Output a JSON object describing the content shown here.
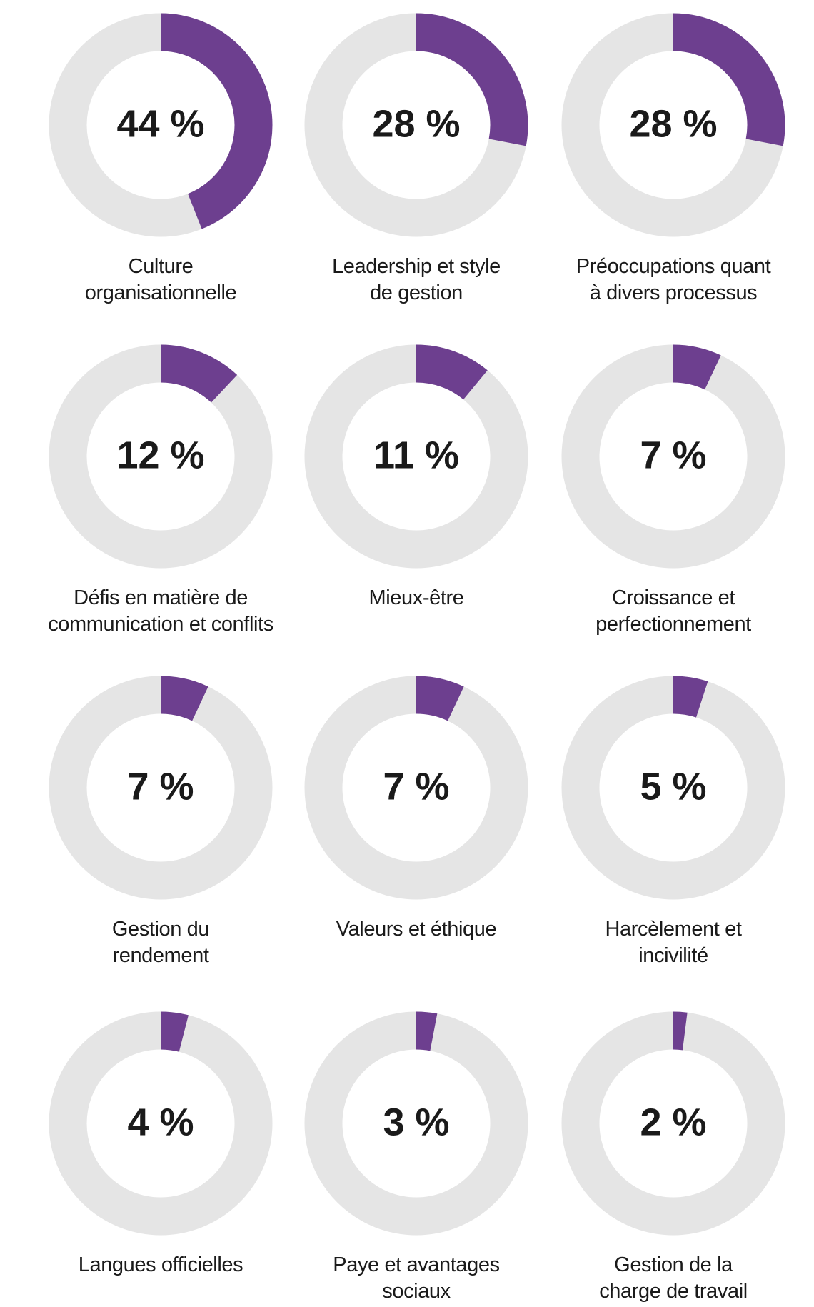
{
  "chart_data": [
    {
      "type": "donut",
      "title_lines": [
        "Culture",
        "organisationnelle"
      ],
      "values": [
        44
      ],
      "value_labels": [
        "44 %"
      ],
      "color": "#6d3f8f",
      "track_color": "#e5e5e5"
    },
    {
      "type": "donut",
      "title_lines": [
        "Leadership et style",
        "de gestion"
      ],
      "values": [
        28
      ],
      "value_labels": [
        "28 %"
      ],
      "color": "#6d3f8f",
      "track_color": "#e5e5e5"
    },
    {
      "type": "donut",
      "title_lines": [
        "Préoccupations quant",
        "à divers processus"
      ],
      "values": [
        28
      ],
      "value_labels": [
        "28 %"
      ],
      "color": "#6d3f8f",
      "track_color": "#e5e5e5"
    },
    {
      "type": "donut",
      "title_lines": [
        "Défis en matière de",
        "communication et conflits"
      ],
      "values": [
        12
      ],
      "value_labels": [
        "12 %"
      ],
      "color": "#6d3f8f",
      "track_color": "#e5e5e5"
    },
    {
      "type": "donut",
      "title_lines": [
        "Mieux-être"
      ],
      "values": [
        11
      ],
      "value_labels": [
        "11 %"
      ],
      "color": "#6d3f8f",
      "track_color": "#e5e5e5"
    },
    {
      "type": "donut",
      "title_lines": [
        "Croissance et",
        "perfectionnement"
      ],
      "values": [
        7
      ],
      "value_labels": [
        "7 %"
      ],
      "color": "#6d3f8f",
      "track_color": "#e5e5e5"
    },
    {
      "type": "donut",
      "title_lines": [
        "Gestion du",
        "rendement"
      ],
      "values": [
        7
      ],
      "value_labels": [
        "7 %"
      ],
      "color": "#6d3f8f",
      "track_color": "#e5e5e5"
    },
    {
      "type": "donut",
      "title_lines": [
        "Valeurs et éthique"
      ],
      "values": [
        7
      ],
      "value_labels": [
        "7 %"
      ],
      "color": "#6d3f8f",
      "track_color": "#e5e5e5"
    },
    {
      "type": "donut",
      "title_lines": [
        "Harcèlement et",
        "incivilité"
      ],
      "values": [
        5
      ],
      "value_labels": [
        "5 %"
      ],
      "color": "#6d3f8f",
      "track_color": "#e5e5e5"
    },
    {
      "type": "donut",
      "title_lines": [
        "Langues officielles"
      ],
      "values": [
        4
      ],
      "value_labels": [
        "4 %"
      ],
      "color": "#6d3f8f",
      "track_color": "#e5e5e5"
    },
    {
      "type": "donut",
      "title_lines": [
        "Paye et avantages",
        "sociaux"
      ],
      "values": [
        3
      ],
      "value_labels": [
        "3 %"
      ],
      "color": "#6d3f8f",
      "track_color": "#e5e5e5"
    },
    {
      "type": "donut",
      "title_lines": [
        "Gestion de la",
        "charge de travail"
      ],
      "values": [
        2
      ],
      "value_labels": [
        "2 %"
      ],
      "color": "#6d3f8f",
      "track_color": "#e5e5e5"
    }
  ]
}
